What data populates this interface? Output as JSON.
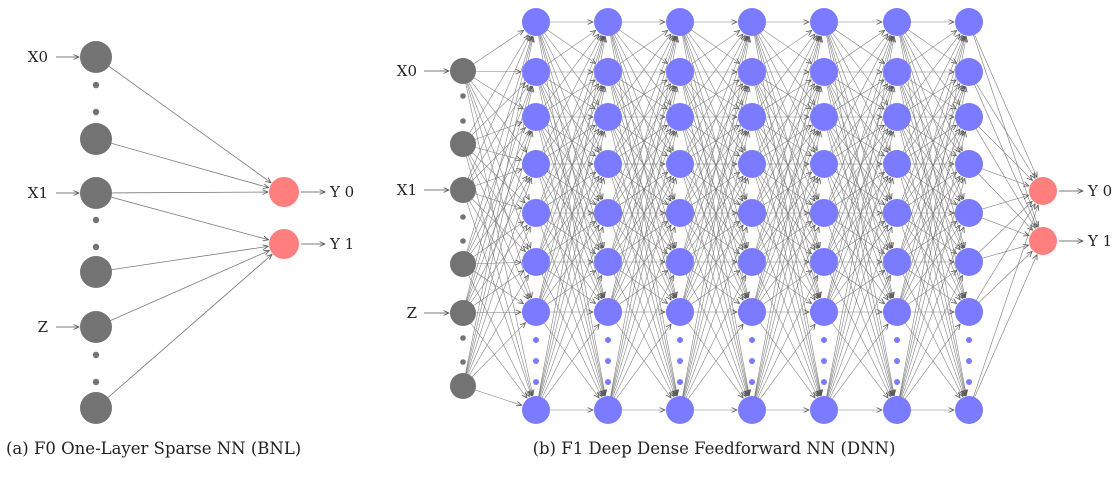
{
  "panel_a": {
    "input_labels": [
      "X0",
      "X1",
      "Z"
    ],
    "output_labels": [
      "Y 0",
      "Y 1"
    ],
    "caption": "(a)  F0  One-Layer  Sparse  NN (BNL)"
  },
  "panel_b": {
    "input_labels": [
      "X0",
      "X1",
      "Z"
    ],
    "output_labels": [
      "Y 0",
      "Y 1"
    ],
    "caption": "(b) F1 Deep Dense Feedforward NN (DNN)"
  },
  "colors": {
    "input_node": "#737373",
    "hidden_node": "#7b7bff",
    "output_node": "#ff7f7f",
    "edge": "#7a7a7a"
  }
}
